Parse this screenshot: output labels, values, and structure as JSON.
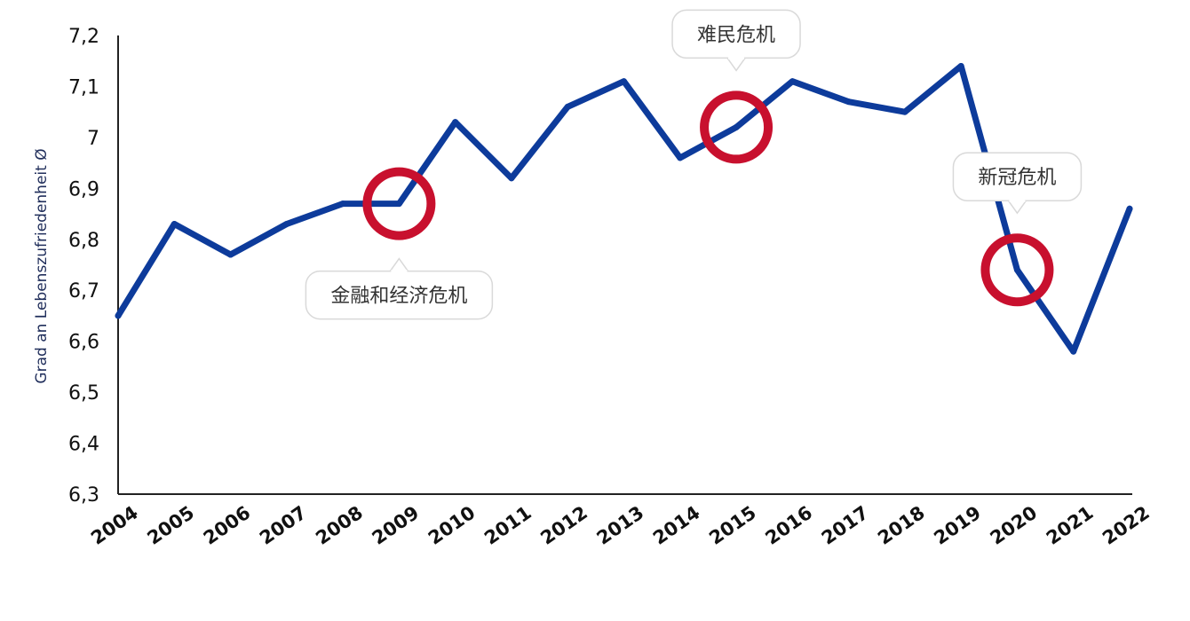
{
  "chart_data": {
    "type": "line",
    "ylabel": "Grad an Lebenszufriedenheit Ø",
    "xlabel": "",
    "ylim": [
      6.3,
      7.2
    ],
    "y_ticks": [
      "6,3",
      "6,4",
      "6,5",
      "6,6",
      "6,7",
      "6,8",
      "6,9",
      "7",
      "7,1",
      "7,2"
    ],
    "y_tick_values": [
      6.3,
      6.4,
      6.5,
      6.6,
      6.7,
      6.8,
      6.9,
      7.0,
      7.1,
      7.2
    ],
    "categories": [
      "2004",
      "2005",
      "2006",
      "2007",
      "2008",
      "2009",
      "2010",
      "2011",
      "2012",
      "2013",
      "2014",
      "2015",
      "2016",
      "2017",
      "2018",
      "2019",
      "2020",
      "2021",
      "2022"
    ],
    "series": [
      {
        "values": [
          6.65,
          6.83,
          6.77,
          6.83,
          6.87,
          6.87,
          7.03,
          6.92,
          7.06,
          7.11,
          6.96,
          7.02,
          7.11,
          7.07,
          7.05,
          7.14,
          6.74,
          6.58,
          6.86
        ],
        "color": "#0d3b9b"
      }
    ],
    "annotations": [
      {
        "text": "金融和经济危机",
        "year": "2009",
        "value": 6.87,
        "position": "below"
      },
      {
        "text": "难民危机",
        "year": "2015",
        "value": 7.02,
        "position": "above"
      },
      {
        "text": "新冠危机",
        "year": "2020",
        "value": 6.74,
        "position": "above"
      }
    ],
    "marker_color": "#c8102e",
    "grid": false,
    "legend": "none"
  }
}
